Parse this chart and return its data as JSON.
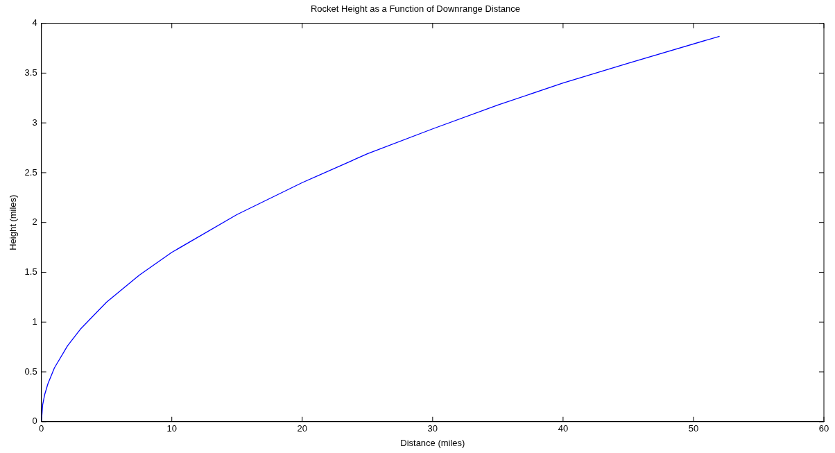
{
  "chart_data": {
    "type": "line",
    "title": "Rocket Height as a Function of Downrange Distance",
    "xlabel": "Distance (miles)",
    "ylabel": "Height (miles)",
    "x": [
      0,
      0.1,
      0.25,
      0.5,
      1,
      2,
      3,
      5,
      7.5,
      10,
      15,
      20,
      25,
      30,
      35,
      40,
      45,
      52
    ],
    "series": [
      {
        "color": "#0000ff",
        "values": [
          0,
          0.17,
          0.27,
          0.38,
          0.54,
          0.76,
          0.93,
          1.2,
          1.47,
          1.7,
          2.08,
          2.4,
          2.69,
          2.94,
          3.18,
          3.4,
          3.6,
          3.87
        ]
      }
    ],
    "xlim": [
      0,
      60
    ],
    "xticks": [
      0,
      10,
      20,
      30,
      40,
      50,
      60
    ],
    "ylim": [
      0,
      4
    ],
    "yticks": [
      0,
      0.5,
      1,
      1.5,
      2,
      2.5,
      3,
      3.5,
      4
    ],
    "grid": false,
    "legend": false,
    "marker": "none",
    "line_style": "solid"
  }
}
